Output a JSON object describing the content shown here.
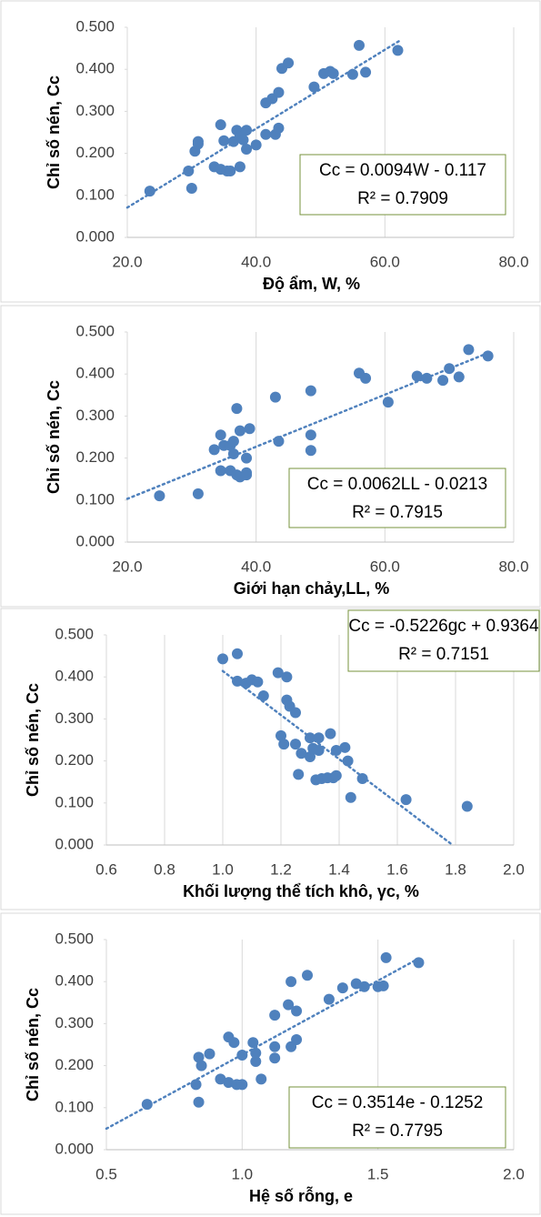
{
  "chart_data": [
    {
      "type": "scatter",
      "x_label": "Độ ẩm, W, %",
      "y_label": "Chỉ số nén, Cc",
      "color": "#4f81bd",
      "x": [
        23.5,
        29.5,
        30,
        30.5,
        31,
        31,
        33.5,
        34.5,
        34.5,
        35,
        35.5,
        36,
        36.5,
        37,
        37.5,
        37.5,
        38,
        38.5,
        38.5,
        40,
        41.5,
        41.5,
        42.5,
        43,
        43.5,
        43.5,
        44,
        45,
        49,
        50.5,
        51.5,
        52,
        55,
        56,
        57,
        62
      ],
      "values": [
        0.11,
        0.158,
        0.117,
        0.205,
        0.222,
        0.228,
        0.168,
        0.268,
        0.162,
        0.23,
        0.158,
        0.158,
        0.228,
        0.255,
        0.168,
        0.24,
        0.232,
        0.21,
        0.255,
        0.22,
        0.245,
        0.32,
        0.33,
        0.245,
        0.345,
        0.26,
        0.402,
        0.415,
        0.358,
        0.39,
        0.395,
        0.39,
        0.388,
        0.457,
        0.393,
        0.445
      ],
      "trendline": {
        "x": [
          20,
          62.5
        ],
        "values": [
          0.071,
          0.47
        ]
      },
      "annotations": [
        "Cc = 0.0094W - 0.117",
        "R² = 0.7909"
      ],
      "xlim": [
        20,
        80
      ],
      "ylim": [
        0,
        0.5
      ],
      "xticks": [
        {
          "value": 20,
          "label": "20.0"
        },
        {
          "value": 40,
          "label": "40.0"
        },
        {
          "value": 60,
          "label": "60.0"
        },
        {
          "value": 80,
          "label": "80.0"
        }
      ],
      "yticks": [
        {
          "value": 0,
          "label": "0.000"
        },
        {
          "value": 0.1,
          "label": "0.100"
        },
        {
          "value": 0.2,
          "label": "0.200"
        },
        {
          "value": 0.3,
          "label": "0.300"
        },
        {
          "value": 0.4,
          "label": "0.400"
        },
        {
          "value": 0.5,
          "label": "0.500"
        }
      ]
    },
    {
      "type": "scatter",
      "x_label": "Giới hạn chảy,LL, %",
      "y_label": "Chỉ số nén, Cc",
      "color": "#4f81bd",
      "x": [
        25,
        31,
        33.5,
        34.5,
        34.5,
        35,
        36,
        36,
        36.5,
        36.5,
        37,
        37,
        37.5,
        37.5,
        38.5,
        38.5,
        38.5,
        39,
        43,
        43.5,
        48.5,
        48.5,
        48.5,
        56,
        57,
        60.5,
        65,
        66.5,
        69,
        70,
        71.5,
        73,
        76
      ],
      "values": [
        0.11,
        0.115,
        0.22,
        0.255,
        0.17,
        0.23,
        0.23,
        0.17,
        0.24,
        0.21,
        0.16,
        0.318,
        0.155,
        0.265,
        0.2,
        0.165,
        0.16,
        0.27,
        0.345,
        0.24,
        0.36,
        0.255,
        0.218,
        0.402,
        0.39,
        0.333,
        0.395,
        0.39,
        0.385,
        0.413,
        0.393,
        0.458,
        0.443
      ],
      "trendline": {
        "x": [
          20,
          76
        ],
        "values": [
          0.103,
          0.45
        ]
      },
      "annotations": [
        "Cc = 0.0062LL - 0.0213",
        "R² = 0.7915"
      ],
      "xlim": [
        20,
        80
      ],
      "ylim": [
        0,
        0.5
      ],
      "xticks": [
        {
          "value": 20,
          "label": "20.0"
        },
        {
          "value": 40,
          "label": "40.0"
        },
        {
          "value": 60,
          "label": "60.0"
        },
        {
          "value": 80,
          "label": "80.0"
        }
      ],
      "yticks": [
        {
          "value": 0,
          "label": "0.000"
        },
        {
          "value": 0.1,
          "label": "0.100"
        },
        {
          "value": 0.2,
          "label": "0.200"
        },
        {
          "value": 0.3,
          "label": "0.300"
        },
        {
          "value": 0.4,
          "label": "0.400"
        },
        {
          "value": 0.5,
          "label": "0.500"
        }
      ]
    },
    {
      "type": "scatter",
      "x_label": "Khối lượng thể tích khô, γc, %",
      "y_label": "Chỉ số nén, Cc",
      "color": "#4f81bd",
      "x": [
        1.0,
        1.05,
        1.05,
        1.08,
        1.1,
        1.12,
        1.14,
        1.19,
        1.2,
        1.21,
        1.22,
        1.22,
        1.23,
        1.25,
        1.25,
        1.26,
        1.27,
        1.3,
        1.3,
        1.31,
        1.32,
        1.33,
        1.33,
        1.34,
        1.36,
        1.37,
        1.38,
        1.39,
        1.39,
        1.42,
        1.43,
        1.44,
        1.48,
        1.63,
        1.84
      ],
      "values": [
        0.443,
        0.455,
        0.39,
        0.385,
        0.393,
        0.388,
        0.355,
        0.41,
        0.26,
        0.24,
        0.4,
        0.345,
        0.33,
        0.315,
        0.24,
        0.168,
        0.218,
        0.255,
        0.21,
        0.23,
        0.155,
        0.255,
        0.225,
        0.158,
        0.16,
        0.265,
        0.16,
        0.165,
        0.225,
        0.232,
        0.2,
        0.113,
        0.158,
        0.108,
        0.092
      ],
      "trendline": {
        "x": [
          1.0,
          1.79
        ],
        "values": [
          0.414,
          0.0
        ]
      },
      "annotations": [
        "Cc = -0.5226gc + 0.9364",
        "R² = 0.7151"
      ],
      "xlim": [
        0.6,
        2.0
      ],
      "ylim": [
        0,
        0.5
      ],
      "xticks": [
        0.6,
        0.8,
        {
          "value": 1,
          "label": "1.0"
        },
        1.2,
        1.4,
        1.6,
        1.8,
        {
          "value": 2,
          "label": "2.0"
        }
      ],
      "yticks": [
        {
          "value": 0,
          "label": "0.000"
        },
        {
          "value": 0.1,
          "label": "0.100"
        },
        {
          "value": 0.2,
          "label": "0.200"
        },
        {
          "value": 0.3,
          "label": "0.300"
        },
        {
          "value": 0.4,
          "label": "0.400"
        },
        {
          "value": 0.5,
          "label": "0.500"
        }
      ]
    },
    {
      "type": "scatter",
      "x_label": "Hệ số rỗng, e",
      "y_label": "Chỉ số nén, Cc",
      "color": "#4f81bd",
      "x": [
        0.65,
        0.83,
        0.84,
        0.84,
        0.85,
        0.88,
        0.92,
        0.95,
        0.95,
        0.97,
        0.98,
        1.0,
        1.0,
        1.04,
        1.05,
        1.05,
        1.07,
        1.12,
        1.12,
        1.12,
        1.17,
        1.18,
        1.18,
        1.2,
        1.2,
        1.24,
        1.32,
        1.37,
        1.42,
        1.45,
        1.5,
        1.52,
        1.53,
        1.65
      ],
      "values": [
        0.108,
        0.155,
        0.22,
        0.113,
        0.2,
        0.228,
        0.168,
        0.268,
        0.16,
        0.255,
        0.155,
        0.225,
        0.155,
        0.255,
        0.21,
        0.23,
        0.168,
        0.32,
        0.245,
        0.218,
        0.345,
        0.4,
        0.245,
        0.262,
        0.33,
        0.415,
        0.358,
        0.385,
        0.395,
        0.388,
        0.388,
        0.39,
        0.457,
        0.445
      ],
      "trendline": {
        "x": [
          0.5,
          1.65
        ],
        "values": [
          0.05,
          0.455
        ]
      },
      "annotations": [
        "Cc = 0.3514e - 0.1252",
        "R² = 0.7795"
      ],
      "xlim": [
        0.5,
        2.0
      ],
      "ylim": [
        0,
        0.5
      ],
      "xticks": [
        0.5,
        {
          "value": 1,
          "label": "1.0"
        },
        1.5,
        {
          "value": 2,
          "label": "2.0"
        }
      ],
      "yticks": [
        {
          "value": 0,
          "label": "0.000"
        },
        {
          "value": 0.1,
          "label": "0.100"
        },
        {
          "value": 0.2,
          "label": "0.200"
        },
        {
          "value": 0.3,
          "label": "0.300"
        },
        {
          "value": 0.4,
          "label": "0.400"
        },
        {
          "value": 0.5,
          "label": "0.500"
        }
      ]
    }
  ]
}
